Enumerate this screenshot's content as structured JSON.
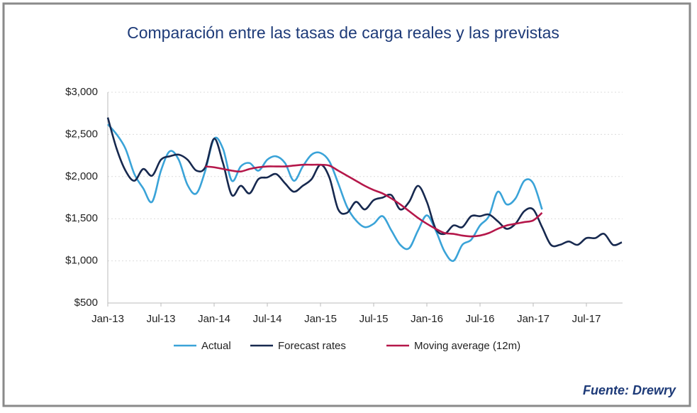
{
  "chart_data": {
    "type": "line",
    "title": "Comparación entre las tasas de carga reales y las previstas",
    "source": "Fuente: Drewry",
    "categories": [
      "Jan-13",
      null,
      null,
      null,
      null,
      null,
      "Jul-13",
      null,
      null,
      null,
      null,
      null,
      "Jan-14",
      null,
      null,
      null,
      null,
      null,
      "Jul-14",
      null,
      null,
      null,
      null,
      null,
      "Jan-15",
      null,
      null,
      null,
      null,
      null,
      "Jul-15",
      null,
      null,
      null,
      null,
      null,
      "Jan-16",
      null,
      null,
      null,
      null,
      null,
      "Jul-16",
      null,
      null,
      null,
      null,
      null,
      "Jan-17",
      null,
      null,
      null,
      null,
      null,
      "Jul-17",
      null,
      null,
      null,
      null
    ],
    "series": [
      {
        "name": "Actual",
        "color": "#3aa3d8",
        "values": [
          2620,
          2500,
          2330,
          2030,
          1860,
          1700,
          2070,
          2300,
          2200,
          1900,
          1800,
          2070,
          2450,
          2330,
          1950,
          2120,
          2160,
          2070,
          2200,
          2240,
          2160,
          1950,
          2120,
          2260,
          2280,
          2180,
          1920,
          1640,
          1480,
          1400,
          1440,
          1530,
          1360,
          1190,
          1150,
          1360,
          1540,
          1360,
          1110,
          1000,
          1190,
          1250,
          1420,
          1530,
          1820,
          1670,
          1740,
          1950,
          1920,
          1610,
          null,
          null,
          null,
          null,
          null,
          null,
          null,
          null,
          null
        ]
      },
      {
        "name": "Forecast rates",
        "color": "#17294f",
        "values": [
          2700,
          2330,
          2070,
          1950,
          2090,
          2010,
          2200,
          2240,
          2260,
          2200,
          2070,
          2110,
          2450,
          2160,
          1780,
          1890,
          1800,
          1970,
          1990,
          2030,
          1920,
          1820,
          1890,
          1970,
          2140,
          1990,
          1610,
          1570,
          1700,
          1610,
          1720,
          1750,
          1780,
          1610,
          1700,
          1890,
          1700,
          1380,
          1320,
          1420,
          1400,
          1530,
          1530,
          1550,
          1470,
          1380,
          1440,
          1590,
          1610,
          1400,
          1190,
          1190,
          1230,
          1190,
          1270,
          1270,
          1320,
          1190,
          1220
        ]
      },
      {
        "name": "Moving average (12m)",
        "color": "#b5174a",
        "values": [
          null,
          null,
          null,
          null,
          null,
          null,
          null,
          null,
          null,
          null,
          null,
          2120,
          2110,
          2090,
          2070,
          2060,
          2090,
          2110,
          2120,
          2120,
          2120,
          2130,
          2140,
          2140,
          2140,
          2130,
          2070,
          2010,
          1950,
          1890,
          1840,
          1800,
          1740,
          1670,
          1590,
          1510,
          1440,
          1380,
          1330,
          1320,
          1300,
          1290,
          1300,
          1330,
          1380,
          1420,
          1440,
          1460,
          1480,
          1570,
          null,
          null,
          null,
          null,
          null,
          null,
          null,
          null,
          null
        ]
      }
    ],
    "ylim": [
      500,
      3000
    ],
    "yticks": [
      {
        "value": 500,
        "label": "$500"
      },
      {
        "value": 1000,
        "label": "$1,000"
      },
      {
        "value": 1500,
        "label": "$1,500"
      },
      {
        "value": 2000,
        "label": "$2,000"
      },
      {
        "value": 2500,
        "label": "$2,500"
      },
      {
        "value": 3000,
        "label": "$3,000"
      }
    ],
    "grid": true,
    "legend": "bottom"
  }
}
